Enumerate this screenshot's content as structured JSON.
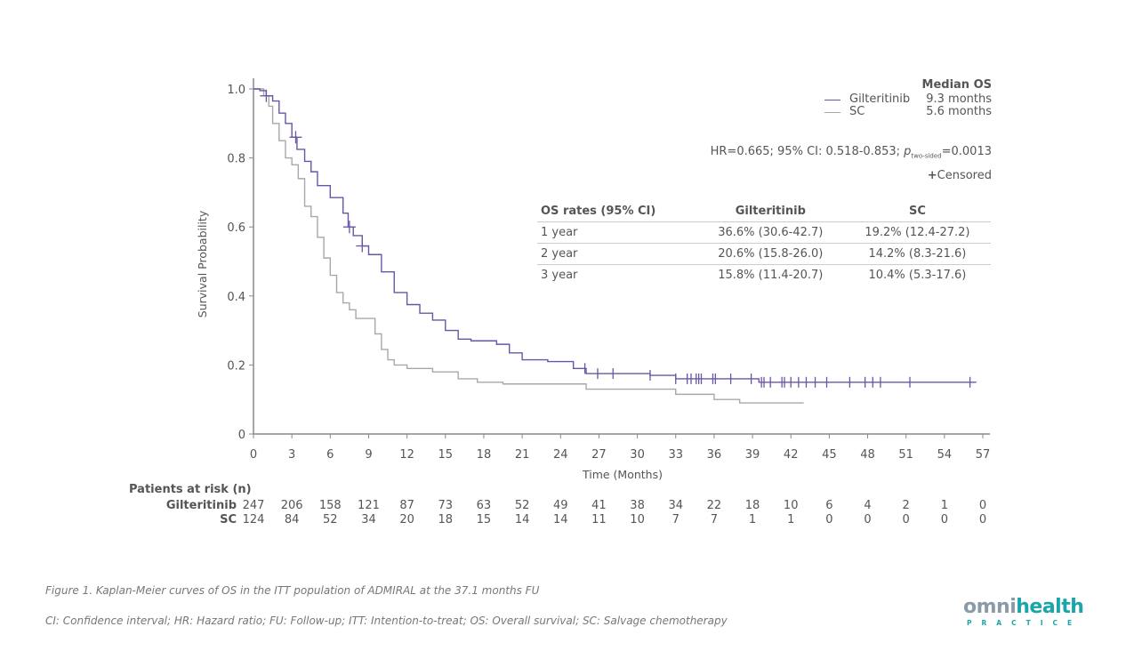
{
  "chart_data": {
    "type": "line",
    "subtype": "kaplan-meier",
    "title": "",
    "xlabel": "Time (Months)",
    "ylabel": "Survival Probability",
    "xlim": [
      0,
      57
    ],
    "ylim": [
      0,
      1.0
    ],
    "x_ticks": [
      0,
      3,
      6,
      9,
      12,
      15,
      18,
      21,
      24,
      27,
      30,
      33,
      36,
      39,
      42,
      45,
      48,
      51,
      54,
      57
    ],
    "y_ticks": [
      0,
      0.2,
      0.4,
      0.6,
      0.8,
      1.0
    ],
    "y_tick_labels": [
      "0",
      "0.2",
      "0.4",
      "0.6",
      "0.8",
      "1.0"
    ],
    "grid": false,
    "legend_position": "top-right",
    "series": [
      {
        "name": "Gilteritinib",
        "color": "#6a55a5",
        "median_os": "9.3 months",
        "points": [
          [
            0,
            1.0
          ],
          [
            0.5,
            0.995
          ],
          [
            1.0,
            0.98
          ],
          [
            1.5,
            0.965
          ],
          [
            2.0,
            0.93
          ],
          [
            2.5,
            0.9
          ],
          [
            3.0,
            0.86
          ],
          [
            3.4,
            0.825
          ],
          [
            4.0,
            0.79
          ],
          [
            4.5,
            0.76
          ],
          [
            5.0,
            0.72
          ],
          [
            6.0,
            0.685
          ],
          [
            7.0,
            0.64
          ],
          [
            7.4,
            0.6
          ],
          [
            7.8,
            0.575
          ],
          [
            8.5,
            0.545
          ],
          [
            9.0,
            0.52
          ],
          [
            10.0,
            0.47
          ],
          [
            11.0,
            0.41
          ],
          [
            12.0,
            0.375
          ],
          [
            13.0,
            0.35
          ],
          [
            14.0,
            0.33
          ],
          [
            15.0,
            0.3
          ],
          [
            16.0,
            0.275
          ],
          [
            17.0,
            0.27
          ],
          [
            19.0,
            0.26
          ],
          [
            20.0,
            0.235
          ],
          [
            21.0,
            0.215
          ],
          [
            23.0,
            0.21
          ],
          [
            25.0,
            0.19
          ],
          [
            26.0,
            0.175
          ],
          [
            31.0,
            0.17
          ],
          [
            33.0,
            0.16
          ],
          [
            39.5,
            0.15
          ],
          [
            56.5,
            0.15
          ]
        ],
        "censored": [
          1.0,
          3.3,
          7.5,
          8.5,
          25.9,
          26.9,
          28.1,
          31.0,
          33.0,
          33.9,
          34.2,
          34.6,
          34.8,
          35.0,
          35.9,
          36.1,
          37.3,
          38.9,
          39.7,
          39.9,
          40.4,
          41.3,
          41.5,
          42.0,
          42.6,
          43.2,
          43.9,
          44.8,
          46.6,
          47.8,
          48.4,
          49.0,
          51.3,
          56.0
        ]
      },
      {
        "name": "SC",
        "color": "#a8a8a8",
        "median_os": "5.6 months",
        "points": [
          [
            0,
            1.0
          ],
          [
            0.8,
            0.98
          ],
          [
            1.2,
            0.95
          ],
          [
            1.5,
            0.9
          ],
          [
            2.0,
            0.85
          ],
          [
            2.5,
            0.8
          ],
          [
            3.0,
            0.78
          ],
          [
            3.5,
            0.74
          ],
          [
            4.0,
            0.66
          ],
          [
            4.5,
            0.63
          ],
          [
            5.0,
            0.57
          ],
          [
            5.5,
            0.51
          ],
          [
            6.0,
            0.46
          ],
          [
            6.5,
            0.41
          ],
          [
            7.0,
            0.38
          ],
          [
            7.5,
            0.36
          ],
          [
            8.0,
            0.335
          ],
          [
            8.8,
            0.335
          ],
          [
            9.5,
            0.29
          ],
          [
            10.0,
            0.245
          ],
          [
            10.5,
            0.215
          ],
          [
            11.0,
            0.2
          ],
          [
            12.0,
            0.19
          ],
          [
            14.0,
            0.18
          ],
          [
            16.0,
            0.16
          ],
          [
            17.5,
            0.15
          ],
          [
            19.5,
            0.145
          ],
          [
            24.0,
            0.145
          ],
          [
            26.0,
            0.13
          ],
          [
            33.0,
            0.115
          ],
          [
            36.0,
            0.1
          ],
          [
            38.0,
            0.09
          ],
          [
            43.0,
            0.09
          ]
        ],
        "censored": []
      }
    ],
    "annotations": {
      "hr_text_main": "HR=0.665; 95% CI: 0.518-0.853; ",
      "hr_p_symbol": "p",
      "hr_p_subscript": "two-sided",
      "hr_p_value": "=0.0013",
      "censored_symbol": "+",
      "censored_label": "Censored"
    }
  },
  "legend": {
    "title": "Median OS",
    "items": [
      {
        "name": "Gilteritinib",
        "value": "9.3 months",
        "color": "#6a55a5"
      },
      {
        "name": "SC",
        "value": "5.6 months",
        "color": "#a8a8a8"
      }
    ]
  },
  "rates_table": {
    "headers": [
      "OS rates (95% CI)",
      "Gilteritinib",
      "SC"
    ],
    "rows": [
      [
        "1 year",
        "36.6% (30.6-42.7)",
        "19.2% (12.4-27.2)"
      ],
      [
        "2 year",
        "20.6% (15.8-26.0)",
        "14.2% (8.3-21.6)"
      ],
      [
        "3 year",
        "15.8% (11.4-20.7)",
        "10.4% (5.3-17.6)"
      ]
    ]
  },
  "at_risk": {
    "title": "Patients at risk (n)",
    "groups": [
      {
        "label": "Gilteritinib",
        "values": [
          "247",
          "206",
          "158",
          "121",
          "87",
          "73",
          "63",
          "52",
          "49",
          "41",
          "38",
          "34",
          "22",
          "18",
          "10",
          "6",
          "4",
          "2",
          "1",
          "0"
        ]
      },
      {
        "label": "SC",
        "values": [
          "124",
          "84",
          "52",
          "34",
          "20",
          "18",
          "15",
          "14",
          "14",
          "11",
          "10",
          "7",
          "7",
          "1",
          "1",
          "0",
          "0",
          "0",
          "0",
          "0"
        ]
      }
    ]
  },
  "captions": {
    "figure": "Figure 1. Kaplan-Meier curves of OS in the ITT population of ADMIRAL at the 37.1 months FU",
    "abbreviations": "CI: Confidence interval; HR: Hazard ratio; FU: Follow-up; ITT: Intention-to-treat; OS: Overall survival; SC: Salvage chemotherapy"
  },
  "logo": {
    "prefix": "omni",
    "main": "health",
    "sub": "PRACTICE"
  }
}
